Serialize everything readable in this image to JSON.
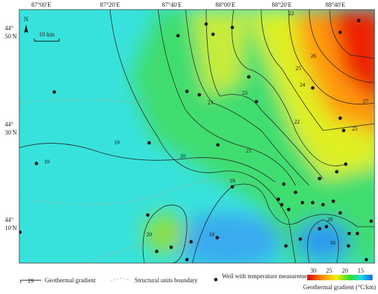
{
  "map": {
    "longitude_labels": [
      "87°00′E",
      "87°20′E",
      "87°40′E",
      "88°00′E",
      "88°20′E",
      "88°40′E"
    ],
    "latitude_labels": [
      [
        "44°",
        "50′N"
      ],
      [
        "44°",
        "30′N"
      ],
      [
        "44°",
        "10′N"
      ]
    ],
    "north": "N",
    "scale": "10 km",
    "contour_labels": [
      19,
      19,
      20,
      21,
      22,
      23,
      23,
      24,
      25,
      26,
      27,
      18,
      19,
      20,
      22,
      25,
      20,
      18
    ]
  },
  "legend": {
    "gradient_sample": 19,
    "gradient": "Geothermal gradient",
    "boundary": "Structural units boundary",
    "well": "Well with temperature measurements",
    "colorbar_ticks": [
      30,
      25,
      20,
      15
    ],
    "colorbar_title": "Geothermal gradient (°C/km)"
  }
}
